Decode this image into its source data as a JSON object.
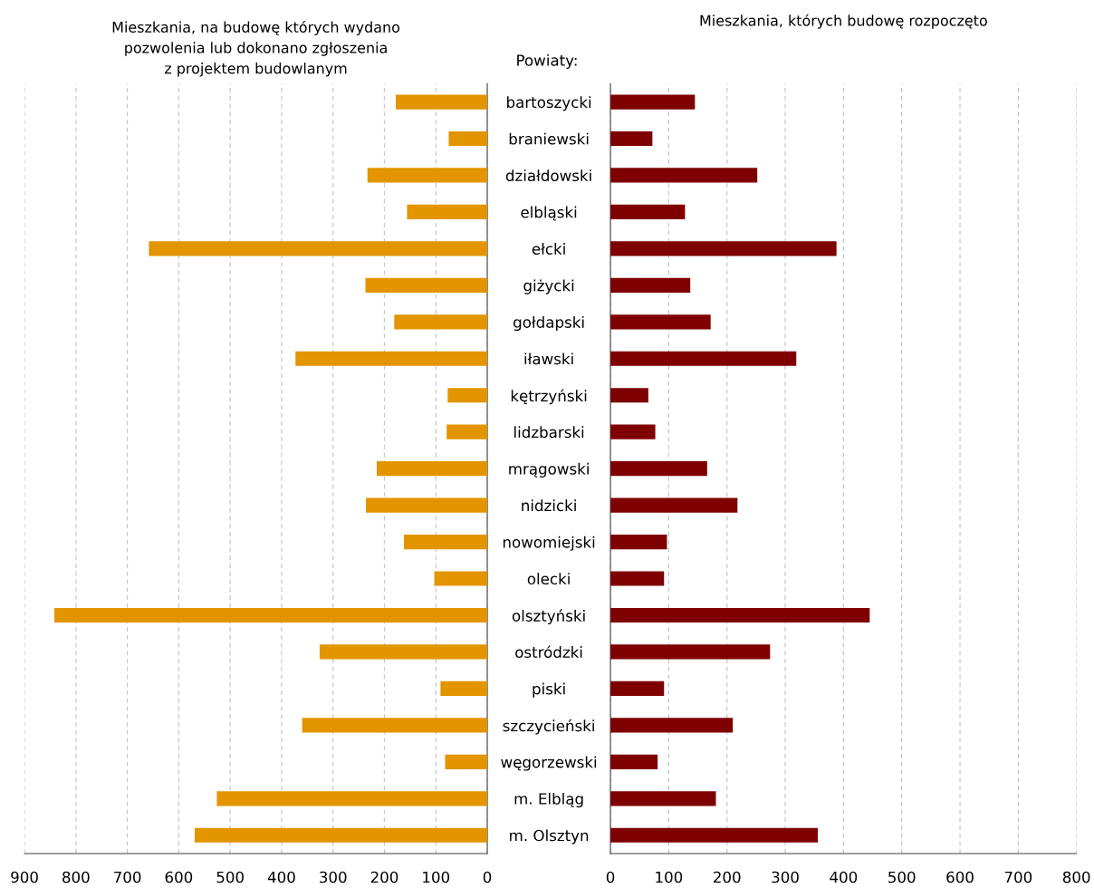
{
  "chart_data": [
    {
      "type": "bar",
      "orientation": "horizontal",
      "title": "Mieszkania, na budowę których wydano\npozwolenia lub dokonano zgłoszenia\nz projektem budowlanym",
      "categories": [
        "bartoszycki",
        "braniewski",
        "działdowski",
        "elbląski",
        "ełcki",
        "giżycki",
        "gołdapski",
        "iławski",
        "kętrzyński",
        "lidzbarski",
        "mrągowski",
        "nidzicki",
        "nowomiejski",
        "olecki",
        "olsztyński",
        "ostródzki",
        "piski",
        "szczycieński",
        "węgorzewski",
        "m. Elbląg",
        "m. Olsztyn"
      ],
      "values": [
        178,
        75,
        233,
        156,
        658,
        237,
        181,
        373,
        77,
        79,
        215,
        236,
        162,
        103,
        842,
        326,
        91,
        360,
        82,
        526,
        569
      ],
      "color": "#e39500",
      "xlim": [
        900,
        0
      ],
      "xticks": [
        900,
        800,
        700,
        600,
        500,
        400,
        300,
        200,
        100,
        0
      ],
      "grid": "x",
      "annotations": [
        "Powiaty:"
      ]
    },
    {
      "type": "bar",
      "orientation": "horizontal",
      "title": "Mieszkania, których budowę rozpoczęto",
      "categories": [
        null,
        null,
        null,
        null,
        null,
        null,
        null,
        null,
        null,
        null,
        null,
        null,
        null,
        null,
        null,
        null,
        null,
        null,
        null,
        null,
        null
      ],
      "values": [
        145,
        72,
        252,
        128,
        388,
        137,
        172,
        319,
        65,
        77,
        166,
        218,
        97,
        92,
        445,
        274,
        92,
        210,
        81,
        181,
        356
      ],
      "color": "#7f0000",
      "xlim": [
        0,
        800
      ],
      "xticks": [
        0,
        100,
        200,
        300,
        400,
        500,
        600,
        700,
        800
      ],
      "grid": "x"
    }
  ]
}
